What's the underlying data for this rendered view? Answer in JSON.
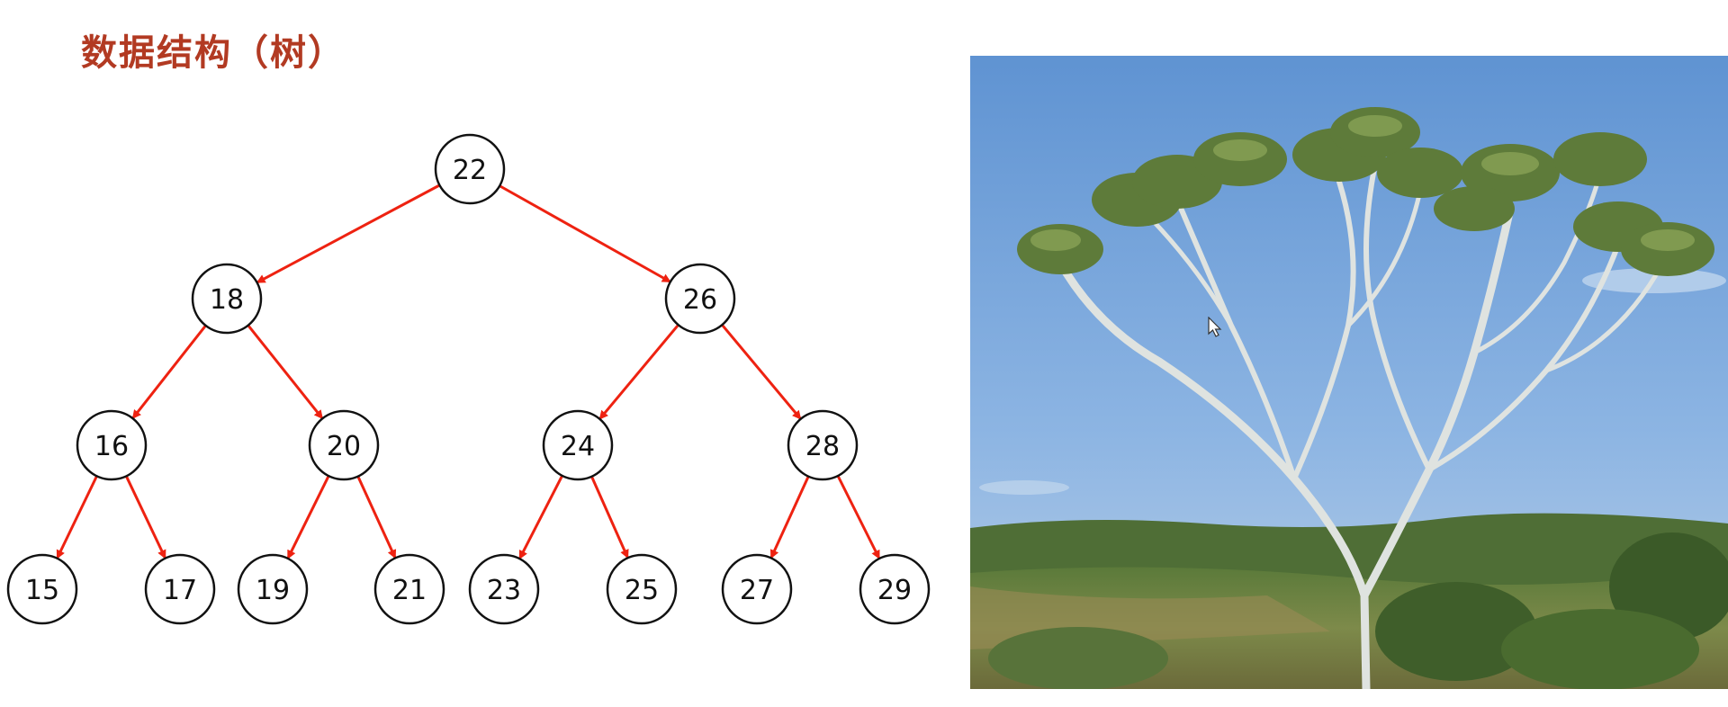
{
  "slide": {
    "title": "数据结构（树）"
  },
  "tree": {
    "edge_color": "#ee2211",
    "node_stroke": "#111111",
    "nodes": [
      {
        "id": "n22",
        "label": "22"
      },
      {
        "id": "n18",
        "label": "18"
      },
      {
        "id": "n26",
        "label": "26"
      },
      {
        "id": "n16",
        "label": "16"
      },
      {
        "id": "n20",
        "label": "20"
      },
      {
        "id": "n24",
        "label": "24"
      },
      {
        "id": "n28",
        "label": "28"
      },
      {
        "id": "n15",
        "label": "15"
      },
      {
        "id": "n17",
        "label": "17"
      },
      {
        "id": "n19",
        "label": "19"
      },
      {
        "id": "n21",
        "label": "21"
      },
      {
        "id": "n23",
        "label": "23"
      },
      {
        "id": "n25",
        "label": "25"
      },
      {
        "id": "n27",
        "label": "27"
      },
      {
        "id": "n29",
        "label": "29"
      }
    ],
    "edges": [
      [
        "n22",
        "n18"
      ],
      [
        "n22",
        "n26"
      ],
      [
        "n18",
        "n16"
      ],
      [
        "n18",
        "n20"
      ],
      [
        "n26",
        "n24"
      ],
      [
        "n26",
        "n28"
      ],
      [
        "n16",
        "n15"
      ],
      [
        "n16",
        "n17"
      ],
      [
        "n20",
        "n19"
      ],
      [
        "n20",
        "n21"
      ],
      [
        "n24",
        "n23"
      ],
      [
        "n24",
        "n25"
      ],
      [
        "n28",
        "n27"
      ],
      [
        "n28",
        "n29"
      ]
    ]
  },
  "photo": {
    "subject": "palm-tree-photo",
    "sky_color": "#6f9fd6",
    "foliage_color": "#5e7b3a"
  }
}
